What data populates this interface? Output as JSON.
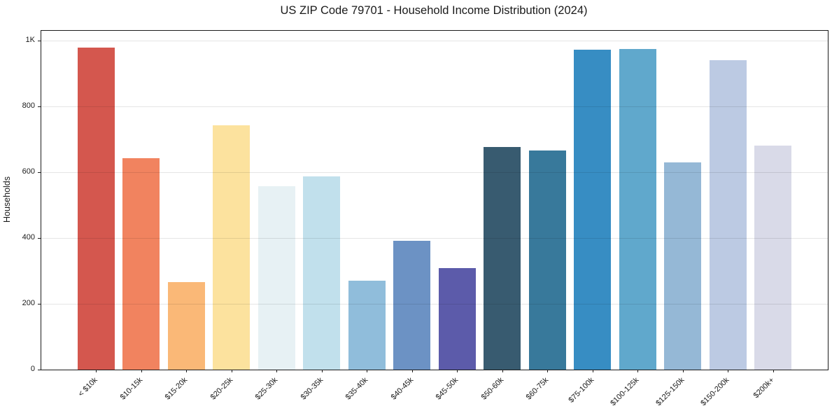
{
  "chart_data": {
    "type": "bar",
    "title": "US ZIP Code 79701 - Household Income Distribution (2024)",
    "xlabel": "",
    "ylabel": "Households",
    "categories": [
      "< $10k",
      "$10-15k",
      "$15-20k",
      "$20-25k",
      "$25-30k",
      "$30-35k",
      "$35-40k",
      "$40-45k",
      "$45-50k",
      "$50-60k",
      "$60-75k",
      "$75-100k",
      "$100-125k",
      "$125-150k",
      "$150-200k",
      "$200k+"
    ],
    "values": [
      980,
      642,
      265,
      742,
      558,
      587,
      270,
      392,
      308,
      676,
      667,
      972,
      975,
      630,
      941,
      682
    ],
    "bar_colors": [
      "#d4574e",
      "#f1835f",
      "#fab877",
      "#fce29e",
      "#e7f1f4",
      "#c1e0ec",
      "#90bddb",
      "#6c92c4",
      "#5c5baa",
      "#385b70",
      "#38799b",
      "#378dc3",
      "#60a8cc",
      "#95b8d6",
      "#bccae3",
      "#d9dae8"
    ],
    "ylim": [
      0,
      1030
    ],
    "yticks": [
      {
        "value": 0,
        "label": "0"
      },
      {
        "value": 200,
        "label": "200"
      },
      {
        "value": 400,
        "label": "400"
      },
      {
        "value": 600,
        "label": "600"
      },
      {
        "value": 800,
        "label": "800"
      },
      {
        "value": 1000,
        "label": "1K"
      }
    ],
    "grid": "horizontal",
    "legend": "none"
  }
}
